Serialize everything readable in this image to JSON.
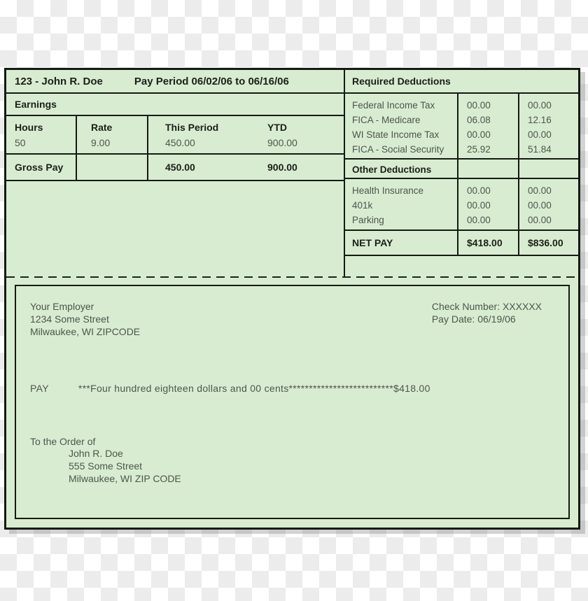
{
  "colors": {
    "stub_background": "#d8ecd2",
    "border": "#141b12",
    "text": "#4c564a",
    "bold_text": "#1b2017",
    "checkerboard_light": "#ffffff",
    "checkerboard_dark": "#ececec"
  },
  "stub": {
    "header": {
      "employee": "123 - John R. Doe",
      "pay_period": "Pay Period 06/02/06 to 06/16/06"
    },
    "earnings": {
      "section_label": "Earnings",
      "columns": [
        "Hours",
        "Rate",
        "This Period",
        "YTD"
      ],
      "row": {
        "hours": "50",
        "rate": "9.00",
        "this_period": "450.00",
        "ytd": "900.00"
      },
      "gross_pay": {
        "label": "Gross Pay",
        "this_period": "450.00",
        "ytd": "900.00"
      }
    },
    "required_deductions": {
      "section_label": "Required Deductions",
      "rows": [
        {
          "label": "Federal Income Tax",
          "this_period": "00.00",
          "ytd": "00.00"
        },
        {
          "label": "FICA - Medicare",
          "this_period": "06.08",
          "ytd": "12.16"
        },
        {
          "label": "WI State Income Tax",
          "this_period": "00.00",
          "ytd": "00.00"
        },
        {
          "label": "FICA - Social Security",
          "this_period": "25.92",
          "ytd": "51.84"
        }
      ]
    },
    "other_deductions": {
      "section_label": "Other Deductions",
      "rows": [
        {
          "label": "Health Insurance",
          "this_period": "00.00",
          "ytd": "00.00"
        },
        {
          "label": "401k",
          "this_period": "00.00",
          "ytd": "00.00"
        },
        {
          "label": "Parking",
          "this_period": "00.00",
          "ytd": "00.00"
        }
      ]
    },
    "net_pay": {
      "label": "NET PAY",
      "this_period": "$418.00",
      "ytd": "$836.00"
    }
  },
  "check": {
    "employer": {
      "name": "Your Employer",
      "street": "1234 Some Street",
      "city": "Milwaukee, WI ZIPCODE"
    },
    "check_number": "Check Number: XXXXXX",
    "pay_date": "Pay Date: 06/19/06",
    "pay_label": "PAY",
    "amount_words": "***Four hundred eighteen dollars and 00 cents**************************",
    "amount_numeric": "$418.00",
    "payee": {
      "intro": "To the Order of",
      "name": "John R. Doe",
      "street": "555 Some Street",
      "city": "Milwaukee, WI ZIP CODE"
    }
  }
}
